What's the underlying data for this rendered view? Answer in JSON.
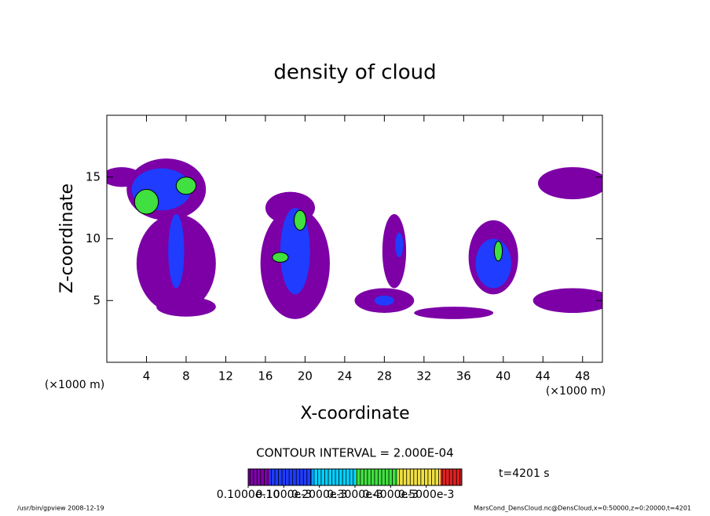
{
  "chart_data": {
    "type": "contour",
    "title": "density of cloud",
    "x_label": "X-coordinate",
    "y_label": "Z-coordinate",
    "x_unit_left": "(×1000 m)",
    "x_unit_right": "(×1000 m)",
    "xlim": [
      0,
      50
    ],
    "xticks": [
      4,
      8,
      12,
      16,
      20,
      24,
      28,
      32,
      36,
      40,
      44,
      48
    ],
    "ylim": [
      0,
      20
    ],
    "yticks": [
      5,
      10,
      15
    ],
    "features": [
      {
        "x": 6,
        "z": 14,
        "rx": 4,
        "rz": 2.5,
        "value": 1e-05
      },
      {
        "x": 1.5,
        "z": 15,
        "rx": 2,
        "rz": 0.8,
        "value": 1e-05
      },
      {
        "x": 7,
        "z": 8,
        "rx": 4,
        "rz": 4,
        "value": 1e-05
      },
      {
        "x": 8,
        "z": 4.5,
        "rx": 3,
        "rz": 0.8,
        "value": 1e-05
      },
      {
        "x": 47,
        "z": 14.5,
        "rx": 3.5,
        "rz": 1.3,
        "value": 1e-05
      },
      {
        "x": 47,
        "z": 5,
        "rx": 4,
        "rz": 1,
        "value": 1e-05
      },
      {
        "x": 19,
        "z": 8,
        "rx": 3.5,
        "rz": 4.5,
        "value": 1e-05
      },
      {
        "x": 18.5,
        "z": 12.5,
        "rx": 2.5,
        "rz": 1.3,
        "value": 1e-05
      },
      {
        "x": 29,
        "z": 9,
        "rx": 1.2,
        "rz": 3,
        "value": 1e-05
      },
      {
        "x": 28,
        "z": 5,
        "rx": 3,
        "rz": 1,
        "value": 1e-05
      },
      {
        "x": 39,
        "z": 8.5,
        "rx": 2.5,
        "rz": 3,
        "value": 1e-05
      },
      {
        "x": 35,
        "z": 4,
        "rx": 4,
        "rz": 0.5,
        "value": 1e-05
      },
      {
        "x": 5.5,
        "z": 14,
        "rx": 3,
        "rz": 1.7,
        "value": 0.00015
      },
      {
        "x": 7,
        "z": 9,
        "rx": 0.8,
        "rz": 3,
        "value": 0.00012
      },
      {
        "x": 19,
        "z": 9,
        "rx": 1.5,
        "rz": 3.5,
        "value": 0.00015
      },
      {
        "x": 29.5,
        "z": 9.5,
        "rx": 0.4,
        "rz": 1,
        "value": 0.0001
      },
      {
        "x": 28,
        "z": 5,
        "rx": 1,
        "rz": 0.4,
        "value": 0.0001
      },
      {
        "x": 39,
        "z": 8,
        "rx": 1.8,
        "rz": 2,
        "value": 0.00012
      },
      {
        "x": 4,
        "z": 13,
        "rx": 1.2,
        "rz": 1,
        "value": 0.0003
      },
      {
        "x": 8,
        "z": 14.3,
        "rx": 1,
        "rz": 0.7,
        "value": 0.0003
      },
      {
        "x": 19.5,
        "z": 11.5,
        "rx": 0.6,
        "rz": 0.8,
        "value": 0.0003
      },
      {
        "x": 17.5,
        "z": 8.5,
        "rx": 0.8,
        "rz": 0.4,
        "value": 0.0003
      },
      {
        "x": 39.5,
        "z": 9,
        "rx": 0.4,
        "rz": 0.8,
        "value": 0.0003
      }
    ],
    "contour_interval": "CONTOUR INTERVAL = 2.000E-04",
    "time_label": "t=4201 s",
    "colorbar": {
      "lim": [
        0,
        0.0006
      ],
      "colors": [
        "#7c00a6",
        "#1f3cff",
        "#00d0ff",
        "#40e040",
        "#f0e040",
        "#e02020"
      ],
      "ticks": [
        {
          "value": 0,
          "label": "0.1000e-10"
        },
        {
          "value": 0.0001,
          "label": "0.1000e-3"
        },
        {
          "value": 0.0002,
          "label": "0.2000e-3"
        },
        {
          "value": 0.0003,
          "label": "0.3000e-3"
        },
        {
          "value": 0.0004,
          "label": "0.4000e-3"
        },
        {
          "value": 0.0005,
          "label": "0.5000e-3"
        }
      ]
    },
    "footer_left": "/usr/bin/gpview  2008-12-19",
    "footer_right": "MarsCond_DensCloud.nc@DensCloud,x=0:50000,z=0:20000,t=4201"
  }
}
